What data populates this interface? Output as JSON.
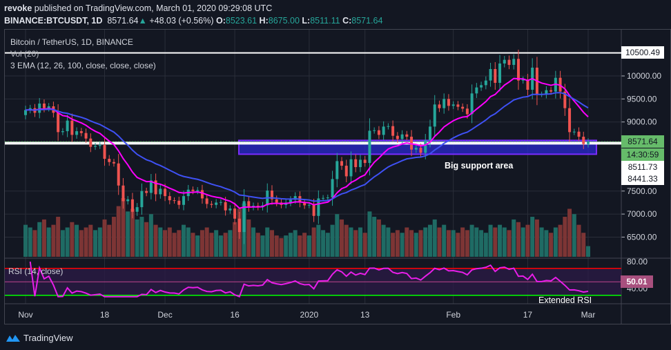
{
  "header": {
    "author": "revoke",
    "published": "published on TradingView.com, March 01, 2020 09:29:08 UTC",
    "symbol": "BINANCE:BTCUSDT, 1D",
    "last": "8571.64",
    "change": "+48.03 (+0.56%)",
    "o_label": "O:",
    "o": "8523.61",
    "h_label": "H:",
    "h": "8675.00",
    "l_label": "L:",
    "l": "8511.11",
    "c_label": "C:",
    "c": "8571.64"
  },
  "legend": {
    "title": "Bitcoin / TetherUS, 1D, BINANCE",
    "vol": "Vol (20)",
    "ema": "3 EMA (12, 26, 100, close, close, close)",
    "rsi": "RSI (14, close)"
  },
  "annotations": {
    "support": "Big support area",
    "rsi_note": "Extended RSI"
  },
  "price_tags": {
    "resistance": "10500.49",
    "last": "8571.64",
    "countdown": "14:30:59",
    "level1": "8511.73",
    "level2": "8441.33",
    "rsi": "50.01"
  },
  "brand": {
    "name": "TradingView"
  },
  "colors": {
    "up": "#26a69a",
    "down": "#ef5350",
    "ema12": "#ff00ff",
    "ema26": "#3f51f5",
    "rsi": "#e91ee9",
    "support_box": "#2a2ad0",
    "background": "#131722"
  },
  "chart_data": {
    "type": "candlestick",
    "x_start": "2019-11-01",
    "x_end": "2020-03-01",
    "x_ticks": [
      {
        "label": "Nov",
        "day": 0
      },
      {
        "label": "18",
        "day": 17
      },
      {
        "label": "Dec",
        "day": 30
      },
      {
        "label": "16",
        "day": 45
      },
      {
        "label": "2020",
        "day": 61
      },
      {
        "label": "13",
        "day": 73
      },
      {
        "label": "Feb",
        "day": 92
      },
      {
        "label": "17",
        "day": 108
      },
      {
        "label": "Mar",
        "day": 121
      }
    ],
    "y_ticks": [
      "10000.00",
      "9500.00",
      "9000.00",
      "7500.00",
      "7000.00",
      "6500.00"
    ],
    "rsi_ticks": [
      "80.00",
      "40.00"
    ],
    "first_open": 9150,
    "close": [
      9260,
      9300,
      9200,
      9400,
      9300,
      9340,
      9200,
      8780,
      8800,
      9030,
      8720,
      8800,
      8760,
      8640,
      8460,
      8480,
      8500,
      8200,
      8130,
      8100,
      7620,
      7280,
      7320,
      7050,
      7150,
      7500,
      7460,
      7730,
      7430,
      7550,
      7390,
      7300,
      7290,
      7200,
      7390,
      7530,
      7500,
      7520,
      7340,
      7220,
      7200,
      7250,
      7260,
      7080,
      7120,
      6900,
      6610,
      7280,
      7150,
      7180,
      7150,
      7190,
      7510,
      7320,
      7250,
      7200,
      7250,
      7310,
      7390,
      7250,
      7190,
      7200,
      6960,
      7340,
      7350,
      7360,
      7760,
      8150,
      8050,
      7820,
      8190,
      8020,
      8180,
      8110,
      8810,
      8820,
      8720,
      8900,
      8910,
      8700,
      8630,
      8730,
      8680,
      8400,
      8440,
      8330,
      8600,
      8900,
      9380,
      9300,
      9500,
      9350,
      9380,
      9330,
      9290,
      9170,
      9620,
      9750,
      9800,
      9900,
      10150,
      9850,
      10270,
      10350,
      10240,
      10370,
      9900,
      9920,
      9700,
      10180,
      9600,
      9600,
      9690,
      9660,
      9960,
      9660,
      9300,
      8780,
      8790,
      8680,
      8520,
      8571.64
    ],
    "volume": [
      60,
      55,
      50,
      65,
      70,
      55,
      60,
      75,
      50,
      55,
      65,
      60,
      50,
      55,
      60,
      50,
      55,
      70,
      60,
      75,
      95,
      110,
      85,
      90,
      70,
      75,
      65,
      80,
      60,
      55,
      50,
      55,
      45,
      50,
      60,
      55,
      45,
      40,
      50,
      55,
      45,
      50,
      40,
      45,
      50,
      65,
      90,
      100,
      70,
      55,
      45,
      40,
      55,
      50,
      40,
      35,
      40,
      45,
      50,
      40,
      45,
      40,
      55,
      60,
      50,
      45,
      60,
      80,
      70,
      60,
      55,
      50,
      55,
      45,
      85,
      75,
      70,
      60,
      55,
      45,
      50,
      45,
      55,
      50,
      45,
      50,
      55,
      60,
      70,
      55,
      60,
      50,
      50,
      45,
      55,
      50,
      60,
      55,
      50,
      45,
      60,
      55,
      60,
      55,
      50,
      70,
      65,
      55,
      60,
      75,
      70,
      55,
      50,
      45,
      55,
      60,
      75,
      90,
      80,
      60,
      45,
      20
    ],
    "ema_periods": [
      12,
      26
    ],
    "rsi_period": 14,
    "horizontal_levels": [
      10500.49,
      8555,
      8525
    ],
    "support_zone": [
      8300,
      8600
    ],
    "rsi_bands": {
      "upper": 70,
      "middle": 50,
      "lower": 30
    }
  }
}
